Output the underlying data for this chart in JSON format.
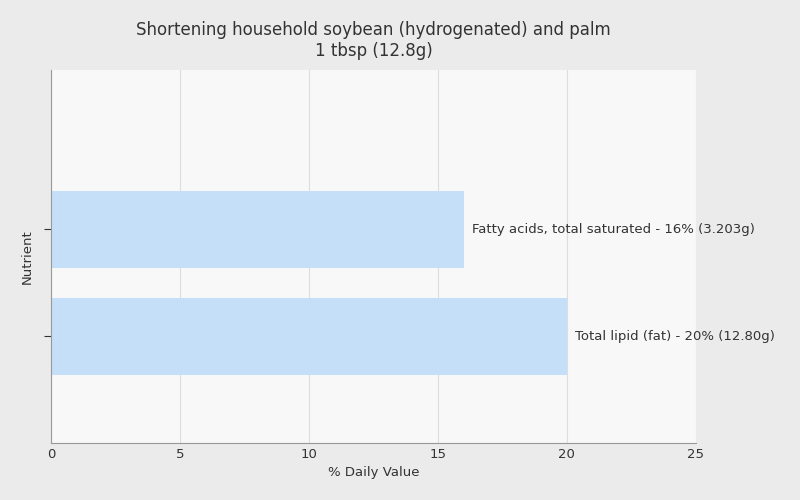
{
  "title_line1": "Shortening household soybean (hydrogenated) and palm",
  "title_line2": "1 tbsp (12.8g)",
  "xlabel": "% Daily Value",
  "ylabel": "Nutrient",
  "bars": [
    {
      "label": "Total lipid (fat) - 20% (12.80g)",
      "value": 20
    },
    {
      "label": "Fatty acids, total saturated - 16% (3.203g)",
      "value": 16
    }
  ],
  "bar_color": "#c5dff8",
  "bar_text_color": "#333333",
  "xlim": [
    0,
    25
  ],
  "xticks": [
    0,
    5,
    10,
    15,
    20,
    25
  ],
  "background_color": "#ebebeb",
  "plot_background_color": "#f8f8f8",
  "grid_color": "#dddddd",
  "title_color": "#333333",
  "axis_label_color": "#333333",
  "bar_height": 0.72,
  "title_fontsize": 12,
  "label_fontsize": 9.5,
  "tick_fontsize": 9.5,
  "ylabel_fontsize": 9.5
}
